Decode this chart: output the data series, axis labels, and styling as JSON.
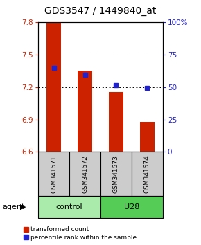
{
  "title": "GDS3547 / 1449840_at",
  "samples": [
    "GSM341571",
    "GSM341572",
    "GSM341573",
    "GSM341574"
  ],
  "red_values": [
    7.8,
    7.35,
    7.15,
    6.88
  ],
  "blue_values": [
    7.38,
    7.31,
    7.22,
    7.19
  ],
  "ylim_left": [
    6.6,
    7.8
  ],
  "ylim_right": [
    0,
    100
  ],
  "yticks_left": [
    6.6,
    6.9,
    7.2,
    7.5,
    7.8
  ],
  "yticks_right": [
    0,
    25,
    50,
    75,
    100
  ],
  "bar_bottom": 6.6,
  "bar_color": "#CC2200",
  "marker_color": "#2222CC",
  "groups": [
    {
      "label": "control",
      "indices": [
        0,
        1
      ],
      "color": "#AAEAAA"
    },
    {
      "label": "U28",
      "indices": [
        2,
        3
      ],
      "color": "#55CC55"
    }
  ],
  "group_row_label": "agent",
  "legend_red": "transformed count",
  "legend_blue": "percentile rank within the sample",
  "title_fontsize": 10,
  "tick_fontsize": 7.5,
  "sample_fontsize": 6.5,
  "legend_fontsize": 6.5,
  "group_fontsize": 8
}
